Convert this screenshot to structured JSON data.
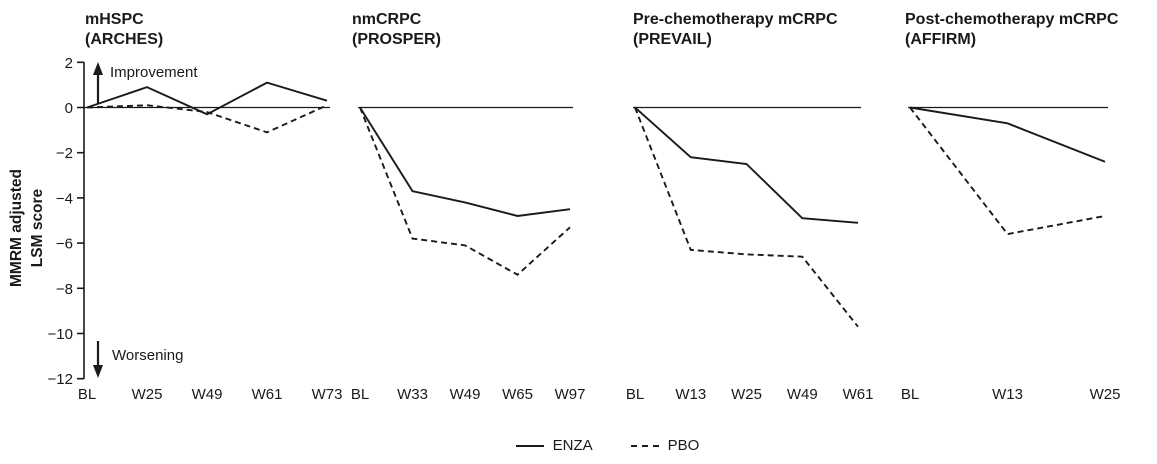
{
  "ylabel_lines": [
    "MMRM adjusted",
    "LSM score"
  ],
  "annotations": {
    "improvement": "Improvement",
    "worsening": "Worsening"
  },
  "legend": {
    "position": "bottom-center",
    "items": [
      {
        "label": "ENZA",
        "style": "solid"
      },
      {
        "label": "PBO",
        "style": "dashed"
      }
    ]
  },
  "colors": {
    "line": "#1a1a1a",
    "axis": "#1a1a1a",
    "background": "#ffffff"
  },
  "yaxis": {
    "ticks": [
      2,
      0,
      -2,
      -4,
      -6,
      -8,
      -10,
      -12
    ],
    "tick_labels": [
      "2",
      "0",
      "−2",
      "−4",
      "−6",
      "−8",
      "−10",
      "−12"
    ]
  },
  "chart_data": [
    {
      "type": "line",
      "title": "mHSPC",
      "subtitle": "(ARCHES)",
      "categories": [
        "BL",
        "W25",
        "W49",
        "W61",
        "W73"
      ],
      "series": [
        {
          "name": "ENZA",
          "line_style": "solid",
          "values": [
            0,
            0.9,
            -0.3,
            1.1,
            0.3
          ]
        },
        {
          "name": "PBO",
          "line_style": "dashed",
          "values": [
            0,
            0.1,
            -0.2,
            -1.1,
            0.1
          ]
        }
      ],
      "ylim": [
        -12,
        2
      ],
      "baseline": 0,
      "grid": false
    },
    {
      "type": "line",
      "title": "nmCRPC",
      "subtitle": "(PROSPER)",
      "categories": [
        "BL",
        "W33",
        "W49",
        "W65",
        "W97"
      ],
      "series": [
        {
          "name": "ENZA",
          "line_style": "solid",
          "values": [
            0,
            -3.7,
            -4.2,
            -4.8,
            -4.5
          ]
        },
        {
          "name": "PBO",
          "line_style": "dashed",
          "values": [
            0,
            -5.8,
            -6.1,
            -7.4,
            -5.3
          ]
        }
      ],
      "ylim": [
        -12,
        2
      ],
      "baseline": 0,
      "grid": false
    },
    {
      "type": "line",
      "title": "Pre-chemotherapy mCRPC",
      "subtitle": "(PREVAIL)",
      "categories": [
        "BL",
        "W13",
        "W25",
        "W49",
        "W61"
      ],
      "series": [
        {
          "name": "ENZA",
          "line_style": "solid",
          "values": [
            0,
            -2.2,
            -2.5,
            -4.9,
            -5.1
          ]
        },
        {
          "name": "PBO",
          "line_style": "dashed",
          "values": [
            0,
            -6.3,
            -6.5,
            -6.6,
            -9.7
          ]
        }
      ],
      "ylim": [
        -12,
        2
      ],
      "baseline": 0,
      "grid": false
    },
    {
      "type": "line",
      "title": "Post-chemotherapy mCRPC",
      "subtitle": "(AFFIRM)",
      "categories": [
        "BL",
        "W13",
        "W25"
      ],
      "series": [
        {
          "name": "ENZA",
          "line_style": "solid",
          "values": [
            0,
            -0.7,
            -2.4
          ]
        },
        {
          "name": "PBO",
          "line_style": "dashed",
          "values": [
            0,
            -5.6,
            -4.8
          ]
        }
      ],
      "ylim": [
        -12,
        2
      ],
      "baseline": 0,
      "grid": false
    }
  ]
}
